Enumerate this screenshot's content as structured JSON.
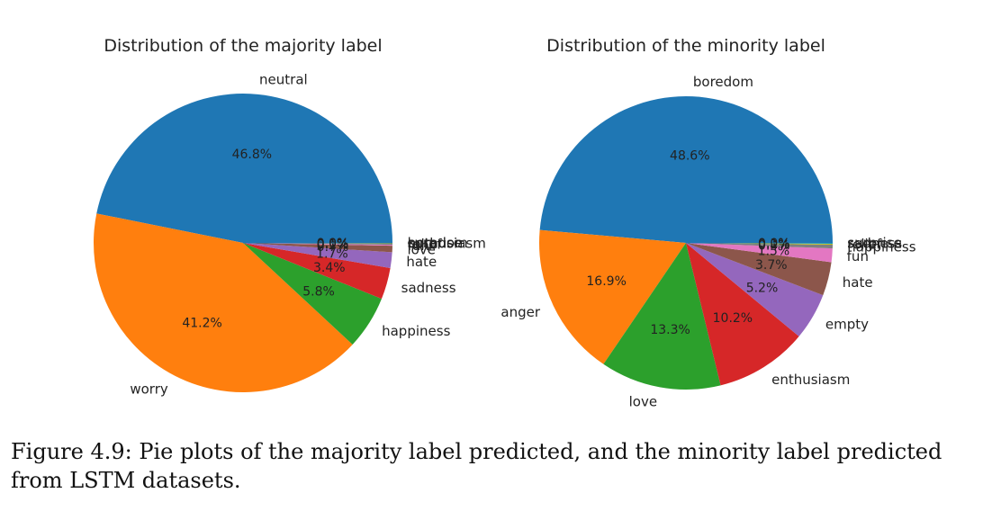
{
  "caption": "Figure 4.9: Pie plots of the majority label predicted, and the minority label predicted from LSTM datasets.",
  "chart_data": [
    {
      "type": "pie",
      "title": "Distribution of the majority label",
      "labels": [
        "neutral",
        "worry",
        "happiness",
        "sadness",
        "hate",
        "love",
        "fun",
        "relief",
        "enthusiasm",
        "surprise",
        "boredom"
      ],
      "values": [
        46.8,
        41.2,
        5.8,
        3.4,
        1.7,
        0.7,
        0.1,
        0.1,
        0.1,
        0.0,
        0.0
      ],
      "value_labels": [
        "46.8%",
        "41.2%",
        "5.8%",
        "3.4%",
        "1.7%",
        "0.7%",
        "0.1%",
        "0.1%",
        "0.1%",
        "0.0%",
        "0.0%"
      ],
      "colors": [
        "#1f77b4",
        "#ff7f0e",
        "#2ca02c",
        "#d62728",
        "#9467bd",
        "#8c564b",
        "#e377c2",
        "#7f7f7f",
        "#bcbd22",
        "#17becf",
        "#1f77b4"
      ],
      "start_angle_deg": 0,
      "direction": "counterclockwise"
    },
    {
      "type": "pie",
      "title": "Distribution of the minority label",
      "labels": [
        "boredom",
        "anger",
        "love",
        "enthusiasm",
        "empty",
        "hate",
        "fun",
        "happiness",
        "relief",
        "sadness",
        "surprise"
      ],
      "values": [
        48.6,
        16.9,
        13.3,
        10.2,
        5.2,
        3.7,
        1.5,
        0.4,
        0.1,
        0.1,
        0.0
      ],
      "value_labels": [
        "48.6%",
        "16.9%",
        "13.3%",
        "10.2%",
        "5.2%",
        "3.7%",
        "1.5%",
        "0.4%",
        "0.1%",
        "0.1%",
        "0.0%"
      ],
      "colors": [
        "#1f77b4",
        "#ff7f0e",
        "#2ca02c",
        "#d62728",
        "#9467bd",
        "#8c564b",
        "#e377c2",
        "#7f7f7f",
        "#bcbd22",
        "#17becf",
        "#1f77b4"
      ],
      "start_angle_deg": 0,
      "direction": "counterclockwise"
    }
  ]
}
